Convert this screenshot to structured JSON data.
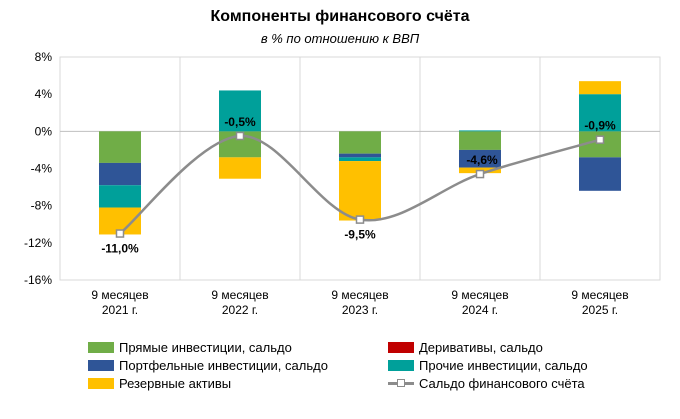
{
  "chart_data": {
    "type": "bar",
    "title": "Компоненты финансового счёта",
    "subtitle": "в % по отношению к ВВП",
    "categories": [
      [
        "9 месяцев",
        "2021 г."
      ],
      [
        "9 месяцев",
        "2022 г."
      ],
      [
        "9 месяцев",
        "2023 г."
      ],
      [
        "9 месяцев",
        "2024 г."
      ],
      [
        "9 месяцев",
        "2025 г."
      ]
    ],
    "yticks": [
      "8%",
      "4%",
      "0%",
      "-4%",
      "-8%",
      "-12%",
      "-16%"
    ],
    "ylim": [
      -16,
      8
    ],
    "stacked": true,
    "series": [
      {
        "name": "Прямые инвестиции, сальдо",
        "color": "#70ad47",
        "values": [
          -3.4,
          -2.8,
          -2.4,
          -2.0,
          -2.8
        ]
      },
      {
        "name": "Деривативы, сальдо",
        "color": "#c00000",
        "values": [
          0.0,
          0.0,
          0.0,
          0.0,
          0.0
        ]
      },
      {
        "name": "Портфельные инвестиции, сальдо",
        "color": "#2f5597",
        "values": [
          -2.4,
          0.0,
          -0.4,
          -1.9,
          -3.6
        ]
      },
      {
        "name": "Прочие инвестиции, сальдо",
        "color": "#00a09a",
        "values": [
          -2.4,
          4.4,
          -0.4,
          0.1,
          4.0
        ]
      },
      {
        "name": "Резервные активы",
        "color": "#ffc000",
        "values": [
          -2.9,
          -2.3,
          -6.4,
          -0.6,
          1.4
        ]
      }
    ],
    "line": {
      "name": "Сальдо финансового счёта",
      "color": "#8c8c8c",
      "values": [
        -11.0,
        -0.5,
        -9.5,
        -4.6,
        -0.9
      ],
      "labels": [
        "-11,0%",
        "-0,5%",
        "-9,5%",
        "-4,6%",
        "-0,9%"
      ]
    },
    "legend": [
      {
        "name": "Прямые инвестиции, сальдо",
        "kind": "swatch",
        "color": "#70ad47"
      },
      {
        "name": "Деривативы, сальдо",
        "kind": "swatch",
        "color": "#c00000"
      },
      {
        "name": "Портфельные инвестиции, сальдо",
        "kind": "swatch",
        "color": "#2f5597"
      },
      {
        "name": "Прочие инвестиции, сальдо",
        "kind": "swatch",
        "color": "#00a09a"
      },
      {
        "name": "Резервные активы",
        "kind": "swatch",
        "color": "#ffc000"
      },
      {
        "name": "Сальдо финансового счёта",
        "kind": "line",
        "color": "#8c8c8c"
      }
    ],
    "grid": true,
    "legend_position": "bottom"
  }
}
